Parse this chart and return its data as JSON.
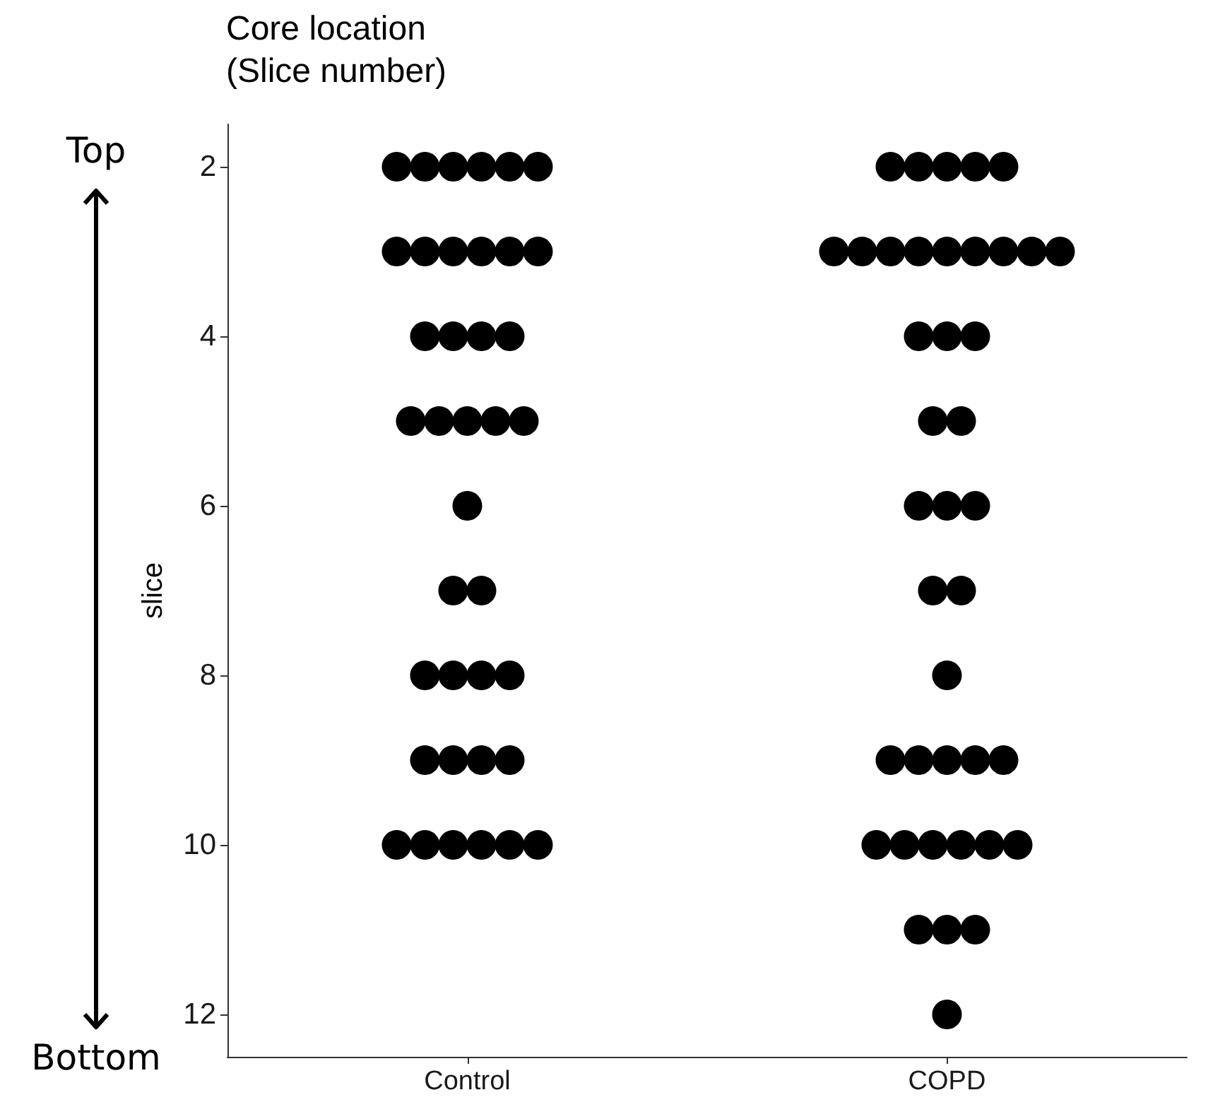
{
  "chart_data": {
    "type": "scatter",
    "title": "Core location\n(Slice number)",
    "ylabel": "slice",
    "categories": [
      "Control",
      "COPD"
    ],
    "series": [
      {
        "color": "#000000",
        "x": [
          "Control",
          "Control",
          "Control",
          "Control",
          "Control",
          "Control",
          "Control",
          "Control",
          "Control",
          "Control",
          "Control",
          "Control",
          "Control",
          "Control",
          "Control",
          "Control",
          "Control",
          "Control",
          "Control",
          "Control",
          "Control",
          "Control",
          "Control",
          "Control",
          "Control",
          "Control",
          "Control",
          "Control",
          "Control",
          "Control",
          "Control",
          "Control",
          "Control",
          "Control",
          "Control",
          "Control",
          "Control",
          "Control",
          "COPD",
          "COPD",
          "COPD",
          "COPD",
          "COPD",
          "COPD",
          "COPD",
          "COPD",
          "COPD",
          "COPD",
          "COPD",
          "COPD",
          "COPD",
          "COPD",
          "COPD",
          "COPD",
          "COPD",
          "COPD",
          "COPD",
          "COPD",
          "COPD",
          "COPD",
          "COPD",
          "COPD",
          "COPD",
          "COPD",
          "COPD",
          "COPD",
          "COPD",
          "COPD",
          "COPD",
          "COPD",
          "COPD",
          "COPD",
          "COPD",
          "COPD",
          "COPD",
          "COPD",
          "COPD",
          "COPD"
        ],
        "values": [
          2,
          2,
          2,
          2,
          2,
          2,
          3,
          3,
          3,
          3,
          3,
          3,
          4,
          4,
          4,
          4,
          5,
          5,
          5,
          5,
          5,
          6,
          7,
          7,
          8,
          8,
          8,
          8,
          9,
          9,
          9,
          9,
          10,
          10,
          10,
          10,
          10,
          10,
          2,
          2,
          2,
          2,
          2,
          3,
          3,
          3,
          3,
          3,
          3,
          3,
          3,
          3,
          4,
          4,
          4,
          5,
          5,
          6,
          6,
          6,
          7,
          7,
          8,
          9,
          9,
          9,
          9,
          9,
          10,
          10,
          10,
          10,
          10,
          10,
          11,
          11,
          11,
          12
        ]
      }
    ],
    "marker": "circle",
    "ylim": [
      12.5,
      1.5
    ],
    "yticks": [
      2,
      4,
      6,
      8,
      10,
      12
    ],
    "grid": false,
    "annotations": [
      "Top",
      "Bottom"
    ]
  }
}
